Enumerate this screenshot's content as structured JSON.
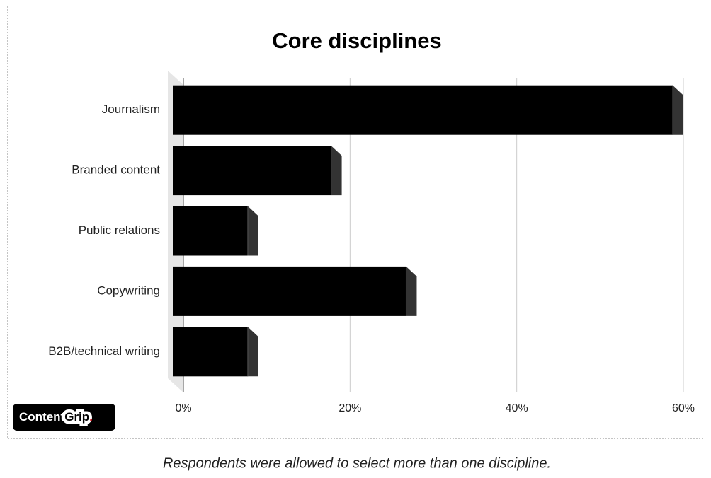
{
  "chart_data": {
    "type": "bar3d-horizontal",
    "title": "Core disciplines",
    "categories": [
      "Journalism",
      "Branded content",
      "Public relations",
      "Copywriting",
      "B2B/technical writing"
    ],
    "values": [
      60,
      19,
      9,
      28,
      9
    ],
    "color": "#000000",
    "xlim": [
      0,
      60
    ],
    "xticks": [
      {
        "value": 0,
        "label": "0%"
      },
      {
        "value": 20,
        "label": "20%"
      },
      {
        "value": 40,
        "label": "40%"
      },
      {
        "value": 60,
        "label": "60%"
      }
    ],
    "grid": true
  },
  "logo": [
    "Content",
    "Grip",
    "."
  ],
  "caption": "Respondents were allowed to select more than one discipline."
}
